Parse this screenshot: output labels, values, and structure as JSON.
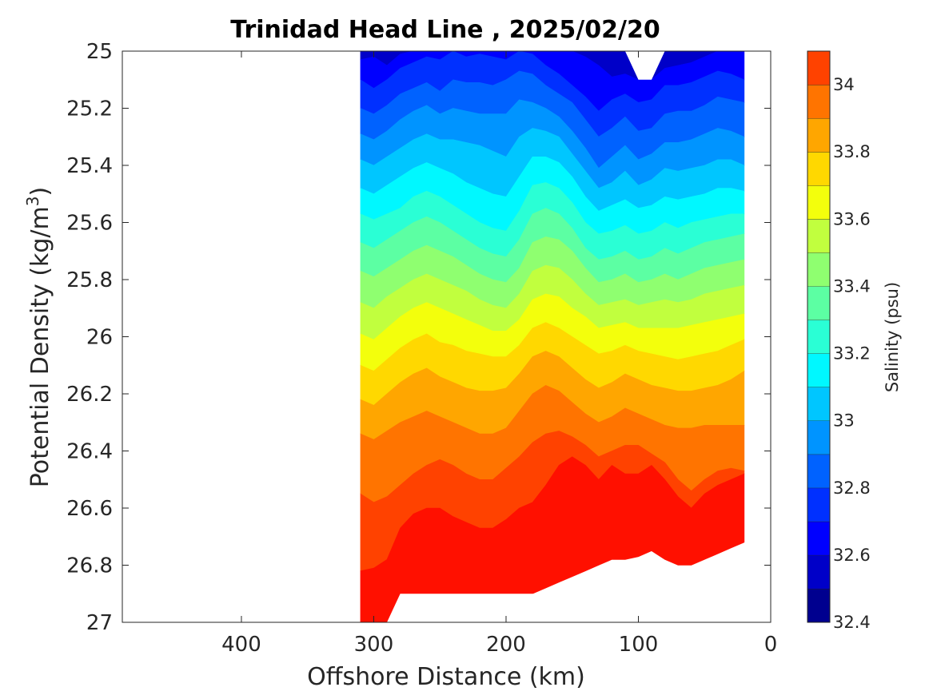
{
  "chart_data": {
    "type": "filled-contour",
    "title": "Trinidad Head Line , 2025/02/20",
    "xlabel": "Offshore Distance (km)",
    "ylabel": {
      "main": "Potential Density (kg/m",
      "sup": "3",
      "end": ")"
    },
    "xlim": [
      490,
      0
    ],
    "ylim": [
      25,
      27
    ],
    "x_reversed": true,
    "y_reversed": true,
    "xticks": [
      400,
      300,
      200,
      100,
      0
    ],
    "xtick_labels": [
      "400",
      "300",
      "200",
      "100",
      "0"
    ],
    "yticks": [
      25,
      25.2,
      25.4,
      25.6,
      25.8,
      26,
      26.2,
      26.4,
      26.6,
      26.8,
      27
    ],
    "ytick_labels": [
      "25",
      "25.2",
      "25.4",
      "25.6",
      "25.8",
      "26",
      "26.2",
      "26.4",
      "26.6",
      "26.8",
      "27"
    ],
    "colorbar": {
      "label": "Salinity (psu)",
      "range": [
        32.4,
        34.1
      ],
      "ticks": [
        32.4,
        32.6,
        32.8,
        33,
        33.2,
        33.4,
        33.6,
        33.8,
        34
      ],
      "tick_labels": [
        "32.4",
        "32.6",
        "32.8",
        "33",
        "33.2",
        "33.4",
        "33.6",
        "33.8",
        "34"
      ],
      "levels": [
        32.4,
        32.5,
        32.6,
        32.7,
        32.8,
        32.9,
        33.0,
        33.1,
        33.2,
        33.3,
        33.4,
        33.5,
        33.6,
        33.7,
        33.8,
        33.9,
        34.0,
        34.1
      ],
      "colors": [
        "#00008f",
        "#0000c8",
        "#0000ff",
        "#0030ff",
        "#0062ff",
        "#0094ff",
        "#00c6ff",
        "#00f8ff",
        "#2affd5",
        "#5cffa3",
        "#8fff70",
        "#c1ff3e",
        "#f3ff0c",
        "#ffd800",
        "#ffa600",
        "#ff7400",
        "#ff4200",
        "#ff1000",
        "#dd0000",
        "#ab0000",
        "#800000"
      ]
    },
    "data_x_extent": [
      310,
      20
    ],
    "data_y_extent": [
      25,
      27
    ],
    "contour_x": [
      310,
      300,
      290,
      280,
      270,
      260,
      250,
      240,
      230,
      220,
      210,
      200,
      190,
      180,
      170,
      160,
      150,
      140,
      130,
      120,
      110,
      100,
      90,
      80,
      70,
      60,
      50,
      40,
      30,
      20
    ],
    "contour_lines": [
      {
        "level": 32.6,
        "y": [
          25.03,
          25.02,
          25.05,
          25.01,
          25.0,
          25.0,
          25.0,
          25.0,
          25.0,
          25.0,
          25.0,
          25.0,
          25.0,
          25.0,
          25.0,
          25.0,
          25.0,
          25.02,
          25.05,
          25.09,
          25.08,
          25.1,
          25.1,
          25.06,
          25.05,
          25.04,
          25.02,
          25.0,
          25.0,
          25.0
        ]
      },
      {
        "level": 32.7,
        "y": [
          25.1,
          25.13,
          25.1,
          25.06,
          25.04,
          25.02,
          25.03,
          25.0,
          25.02,
          25.01,
          25.02,
          25.03,
          25.0,
          25.01,
          25.05,
          25.08,
          25.12,
          25.16,
          25.21,
          25.17,
          25.15,
          25.18,
          25.17,
          25.12,
          25.12,
          25.11,
          25.09,
          25.07,
          25.08,
          25.1
        ]
      },
      {
        "level": 32.8,
        "y": [
          25.2,
          25.22,
          25.19,
          25.15,
          25.13,
          25.11,
          25.14,
          25.1,
          25.11,
          25.11,
          25.12,
          25.1,
          25.07,
          25.08,
          25.12,
          25.15,
          25.18,
          25.24,
          25.3,
          25.27,
          25.23,
          25.28,
          25.27,
          25.22,
          25.21,
          25.21,
          25.19,
          25.16,
          25.17,
          25.18
        ]
      },
      {
        "level": 32.9,
        "y": [
          25.29,
          25.31,
          25.28,
          25.24,
          25.21,
          25.19,
          25.22,
          25.2,
          25.21,
          25.22,
          25.22,
          25.22,
          25.17,
          25.18,
          25.2,
          25.23,
          25.28,
          25.34,
          25.41,
          25.37,
          25.33,
          25.38,
          25.36,
          25.32,
          25.32,
          25.31,
          25.29,
          25.27,
          25.28,
          25.3
        ]
      },
      {
        "level": 33.0,
        "y": [
          25.38,
          25.4,
          25.37,
          25.34,
          25.31,
          25.29,
          25.31,
          25.31,
          25.32,
          25.33,
          25.35,
          25.37,
          25.3,
          25.27,
          25.28,
          25.3,
          25.36,
          25.42,
          25.48,
          25.46,
          25.42,
          25.47,
          25.45,
          25.41,
          25.42,
          25.41,
          25.4,
          25.38,
          25.38,
          25.4
        ]
      },
      {
        "level": 33.1,
        "y": [
          25.48,
          25.5,
          25.47,
          25.44,
          25.41,
          25.39,
          25.41,
          25.43,
          25.46,
          25.48,
          25.5,
          25.51,
          25.44,
          25.37,
          25.37,
          25.39,
          25.44,
          25.51,
          25.56,
          25.54,
          25.52,
          25.55,
          25.54,
          25.51,
          25.52,
          25.51,
          25.5,
          25.48,
          25.48,
          25.49
        ]
      },
      {
        "level": 33.2,
        "y": [
          25.57,
          25.59,
          25.57,
          25.55,
          25.51,
          25.49,
          25.51,
          25.54,
          25.57,
          25.6,
          25.62,
          25.63,
          25.56,
          25.47,
          25.46,
          25.48,
          25.53,
          25.6,
          25.64,
          25.63,
          25.61,
          25.64,
          25.63,
          25.6,
          25.62,
          25.6,
          25.59,
          25.58,
          25.57,
          25.57
        ]
      },
      {
        "level": 33.3,
        "y": [
          25.67,
          25.69,
          25.66,
          25.63,
          25.6,
          25.58,
          25.6,
          25.63,
          25.66,
          25.69,
          25.71,
          25.72,
          25.66,
          25.57,
          25.55,
          25.57,
          25.62,
          25.69,
          25.73,
          25.72,
          25.7,
          25.73,
          25.72,
          25.69,
          25.71,
          25.69,
          25.67,
          25.66,
          25.65,
          25.64
        ]
      },
      {
        "level": 33.4,
        "y": [
          25.77,
          25.79,
          25.76,
          25.73,
          25.7,
          25.68,
          25.7,
          25.72,
          25.75,
          25.78,
          25.8,
          25.81,
          25.76,
          25.67,
          25.65,
          25.66,
          25.7,
          25.76,
          25.81,
          25.8,
          25.78,
          25.81,
          25.8,
          25.78,
          25.8,
          25.78,
          25.76,
          25.75,
          25.74,
          25.73
        ]
      },
      {
        "level": 33.5,
        "y": [
          25.88,
          25.9,
          25.86,
          25.83,
          25.8,
          25.78,
          25.8,
          25.82,
          25.84,
          25.87,
          25.89,
          25.9,
          25.85,
          25.77,
          25.75,
          25.76,
          25.8,
          25.85,
          25.89,
          25.88,
          25.87,
          25.89,
          25.88,
          25.87,
          25.88,
          25.87,
          25.85,
          25.84,
          25.83,
          25.82
        ]
      },
      {
        "level": 33.6,
        "y": [
          25.99,
          26.01,
          25.97,
          25.93,
          25.9,
          25.88,
          25.9,
          25.92,
          25.94,
          25.96,
          25.98,
          25.98,
          25.94,
          25.87,
          25.85,
          25.86,
          25.9,
          25.93,
          25.97,
          25.96,
          25.95,
          25.97,
          25.97,
          25.97,
          25.97,
          25.96,
          25.95,
          25.94,
          25.93,
          25.92
        ]
      },
      {
        "level": 33.7,
        "y": [
          26.1,
          26.12,
          26.08,
          26.04,
          26.01,
          25.99,
          26.02,
          26.03,
          26.05,
          26.06,
          26.07,
          26.07,
          26.03,
          25.97,
          25.95,
          25.97,
          26.0,
          26.03,
          26.06,
          26.05,
          26.03,
          26.05,
          26.06,
          26.07,
          26.08,
          26.07,
          26.06,
          26.05,
          26.03,
          26.01
        ]
      },
      {
        "level": 33.8,
        "y": [
          26.22,
          26.24,
          26.2,
          26.16,
          26.13,
          26.11,
          26.14,
          26.16,
          26.18,
          26.19,
          26.19,
          26.18,
          26.13,
          26.07,
          26.05,
          26.07,
          26.11,
          26.15,
          26.18,
          26.16,
          26.13,
          26.15,
          26.17,
          26.18,
          26.19,
          26.19,
          26.18,
          26.17,
          26.15,
          26.12
        ]
      },
      {
        "level": 33.9,
        "y": [
          26.34,
          26.36,
          26.33,
          26.3,
          26.28,
          26.26,
          26.28,
          26.3,
          26.32,
          26.34,
          26.34,
          26.32,
          26.26,
          26.2,
          26.17,
          26.19,
          26.23,
          26.27,
          26.3,
          26.28,
          26.25,
          26.27,
          26.29,
          26.31,
          26.32,
          26.32,
          26.31,
          26.31,
          26.31,
          26.31
        ]
      },
      {
        "level": 34.0,
        "y": [
          26.55,
          26.58,
          26.56,
          26.52,
          26.48,
          26.45,
          26.43,
          26.45,
          26.48,
          26.5,
          26.5,
          26.46,
          26.42,
          26.37,
          26.34,
          26.33,
          26.35,
          26.38,
          26.42,
          26.4,
          26.38,
          26.38,
          26.41,
          26.44,
          26.5,
          26.54,
          26.5,
          26.47,
          26.46,
          26.47
        ]
      },
      {
        "level": 34.1,
        "y": [
          26.82,
          26.81,
          26.78,
          26.67,
          26.62,
          26.6,
          26.6,
          26.63,
          26.65,
          26.67,
          26.67,
          26.64,
          26.6,
          26.58,
          26.52,
          26.45,
          26.42,
          26.45,
          26.5,
          26.45,
          26.48,
          26.48,
          26.45,
          26.5,
          26.56,
          26.6,
          26.55,
          26.52,
          26.5,
          26.48
        ]
      },
      {
        "level": 34.2,
        "y": [
          27.0,
          27.0,
          27.0,
          27.0,
          27.0,
          27.0,
          27.0,
          27.0,
          27.0,
          26.9,
          26.9,
          26.9,
          26.9,
          26.9,
          26.88,
          26.86,
          26.84,
          26.82,
          26.8,
          26.78,
          26.78,
          26.77,
          26.75,
          26.78,
          26.8,
          26.8,
          26.78,
          26.76,
          26.74,
          26.72
        ]
      }
    ]
  }
}
